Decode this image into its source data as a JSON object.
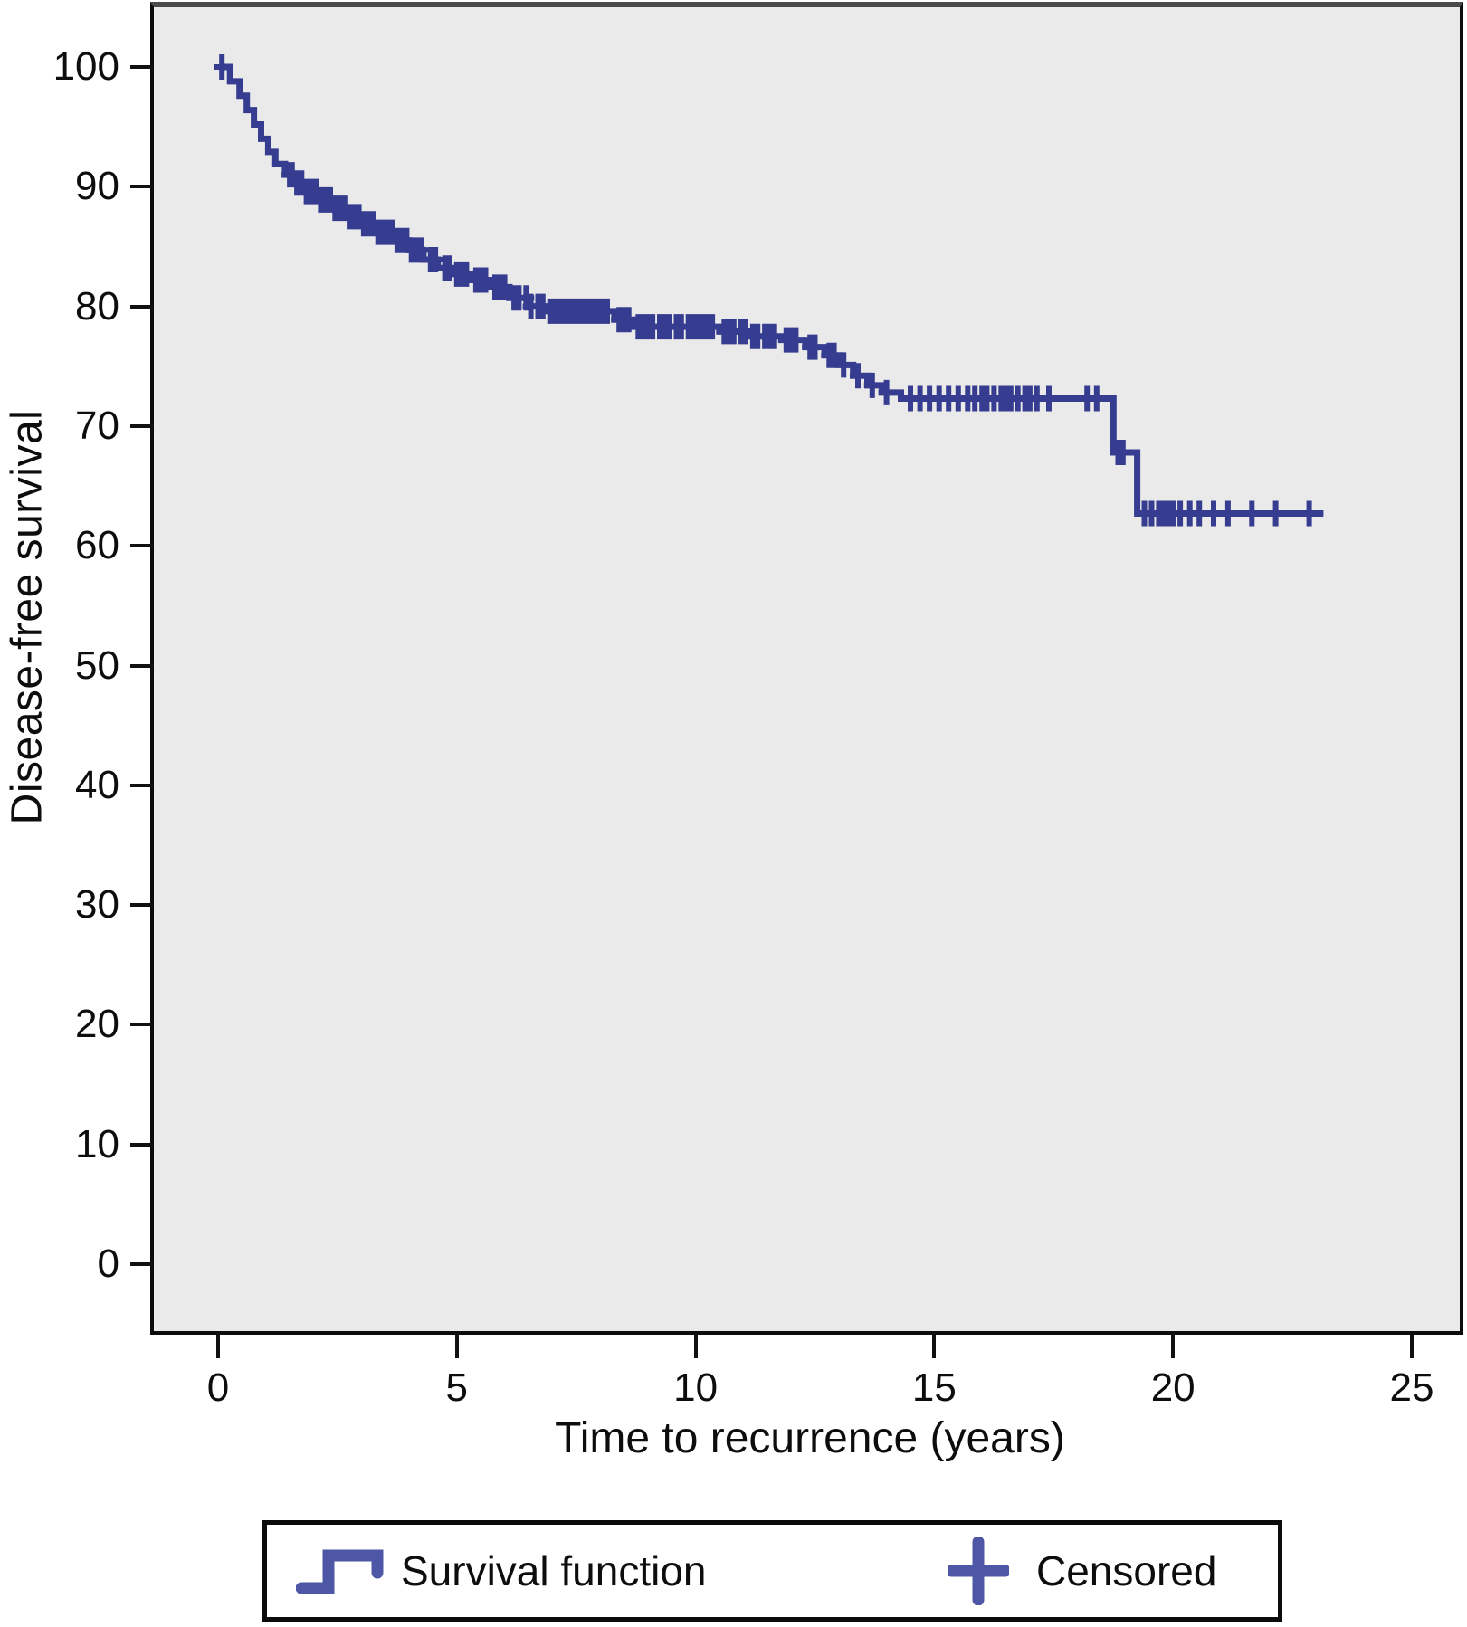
{
  "figure_title": "",
  "colors": {
    "curve": "#363c8f",
    "legend_symbol": "#4d57a6",
    "plot_background": "#eaeaea",
    "axis": "#111111",
    "plot_border": "#0c0c0c",
    "plot_border_top": "#4b4b4b"
  },
  "legend": {
    "items": [
      {
        "symbol": "step-line",
        "label": "Survival function"
      },
      {
        "symbol": "plus",
        "label": "Censored"
      }
    ],
    "position": "bottom"
  },
  "chart_data": {
    "type": "line",
    "subtype": "kaplan-meier-step",
    "title": "",
    "xlabel": "Time to recurrence (years)",
    "ylabel": "Disease-free survival",
    "xlim": [
      0,
      25
    ],
    "ylim": [
      0,
      100
    ],
    "x_ticks": [
      0,
      5,
      10,
      15,
      20,
      25
    ],
    "y_ticks": [
      0,
      10,
      20,
      30,
      40,
      50,
      60,
      70,
      80,
      90,
      100
    ],
    "grid": false,
    "legend_position": "bottom",
    "series": [
      {
        "name": "Survival function",
        "step_mode": "step-after",
        "points": [
          [
            0.05,
            100
          ],
          [
            0.25,
            98.8
          ],
          [
            0.45,
            97.6
          ],
          [
            0.6,
            96.4
          ],
          [
            0.75,
            95.2
          ],
          [
            0.9,
            94.0
          ],
          [
            1.05,
            92.9
          ],
          [
            1.2,
            91.9
          ],
          [
            1.4,
            91.0
          ],
          [
            1.6,
            90.3
          ],
          [
            1.85,
            89.6
          ],
          [
            2.1,
            88.9
          ],
          [
            2.4,
            88.2
          ],
          [
            2.7,
            87.5
          ],
          [
            3.0,
            86.9
          ],
          [
            3.3,
            86.2
          ],
          [
            3.7,
            85.5
          ],
          [
            4.0,
            84.7
          ],
          [
            4.3,
            83.9
          ],
          [
            4.6,
            83.2
          ],
          [
            4.9,
            82.7
          ],
          [
            5.3,
            82.2
          ],
          [
            5.7,
            81.6
          ],
          [
            6.1,
            80.7
          ],
          [
            6.5,
            80.0
          ],
          [
            6.9,
            79.6
          ],
          [
            8.3,
            78.9
          ],
          [
            8.7,
            78.3
          ],
          [
            10.5,
            77.9
          ],
          [
            11.1,
            77.5
          ],
          [
            11.8,
            77.2
          ],
          [
            12.3,
            76.6
          ],
          [
            12.7,
            75.9
          ],
          [
            13.0,
            75.1
          ],
          [
            13.3,
            74.2
          ],
          [
            13.6,
            73.4
          ],
          [
            13.9,
            72.8
          ],
          [
            14.3,
            72.3
          ],
          [
            18.75,
            67.8
          ],
          [
            19.25,
            62.7
          ],
          [
            23.15,
            62.7
          ]
        ]
      }
    ],
    "censored_times": [
      0.08,
      1.5,
      1.55,
      1.65,
      1.75,
      1.85,
      1.95,
      2.05,
      2.15,
      2.25,
      2.35,
      2.45,
      2.55,
      2.65,
      2.75,
      2.85,
      2.95,
      3.05,
      3.15,
      3.25,
      3.35,
      3.45,
      3.55,
      3.65,
      3.75,
      3.85,
      3.95,
      4.05,
      4.15,
      4.25,
      4.45,
      4.55,
      4.75,
      4.85,
      5.0,
      5.1,
      5.2,
      5.4,
      5.5,
      5.6,
      5.8,
      5.9,
      6.0,
      6.2,
      6.3,
      6.45,
      6.55,
      6.7,
      6.8,
      6.95,
      7.05,
      7.15,
      7.25,
      7.35,
      7.45,
      7.55,
      7.65,
      7.75,
      7.85,
      7.95,
      8.05,
      8.15,
      8.4,
      8.5,
      8.6,
      8.8,
      8.9,
      9.0,
      9.1,
      9.25,
      9.35,
      9.45,
      9.6,
      9.7,
      9.85,
      9.95,
      10.05,
      10.15,
      10.25,
      10.35,
      10.6,
      10.7,
      10.8,
      10.95,
      11.05,
      11.2,
      11.3,
      11.45,
      11.55,
      11.65,
      11.9,
      12.0,
      12.1,
      12.4,
      12.5,
      12.8,
      12.9,
      13.1,
      13.4,
      13.7,
      14.0,
      14.5,
      14.7,
      14.9,
      15.1,
      15.3,
      15.5,
      15.7,
      15.85,
      16.0,
      16.1,
      16.25,
      16.4,
      16.5,
      16.6,
      16.75,
      16.9,
      17.0,
      17.15,
      17.4,
      18.2,
      18.4,
      18.85,
      18.95,
      19.4,
      19.55,
      19.7,
      19.8,
      19.9,
      20.0,
      20.15,
      20.35,
      20.55,
      20.85,
      21.15,
      21.65,
      22.15,
      22.85
    ]
  }
}
